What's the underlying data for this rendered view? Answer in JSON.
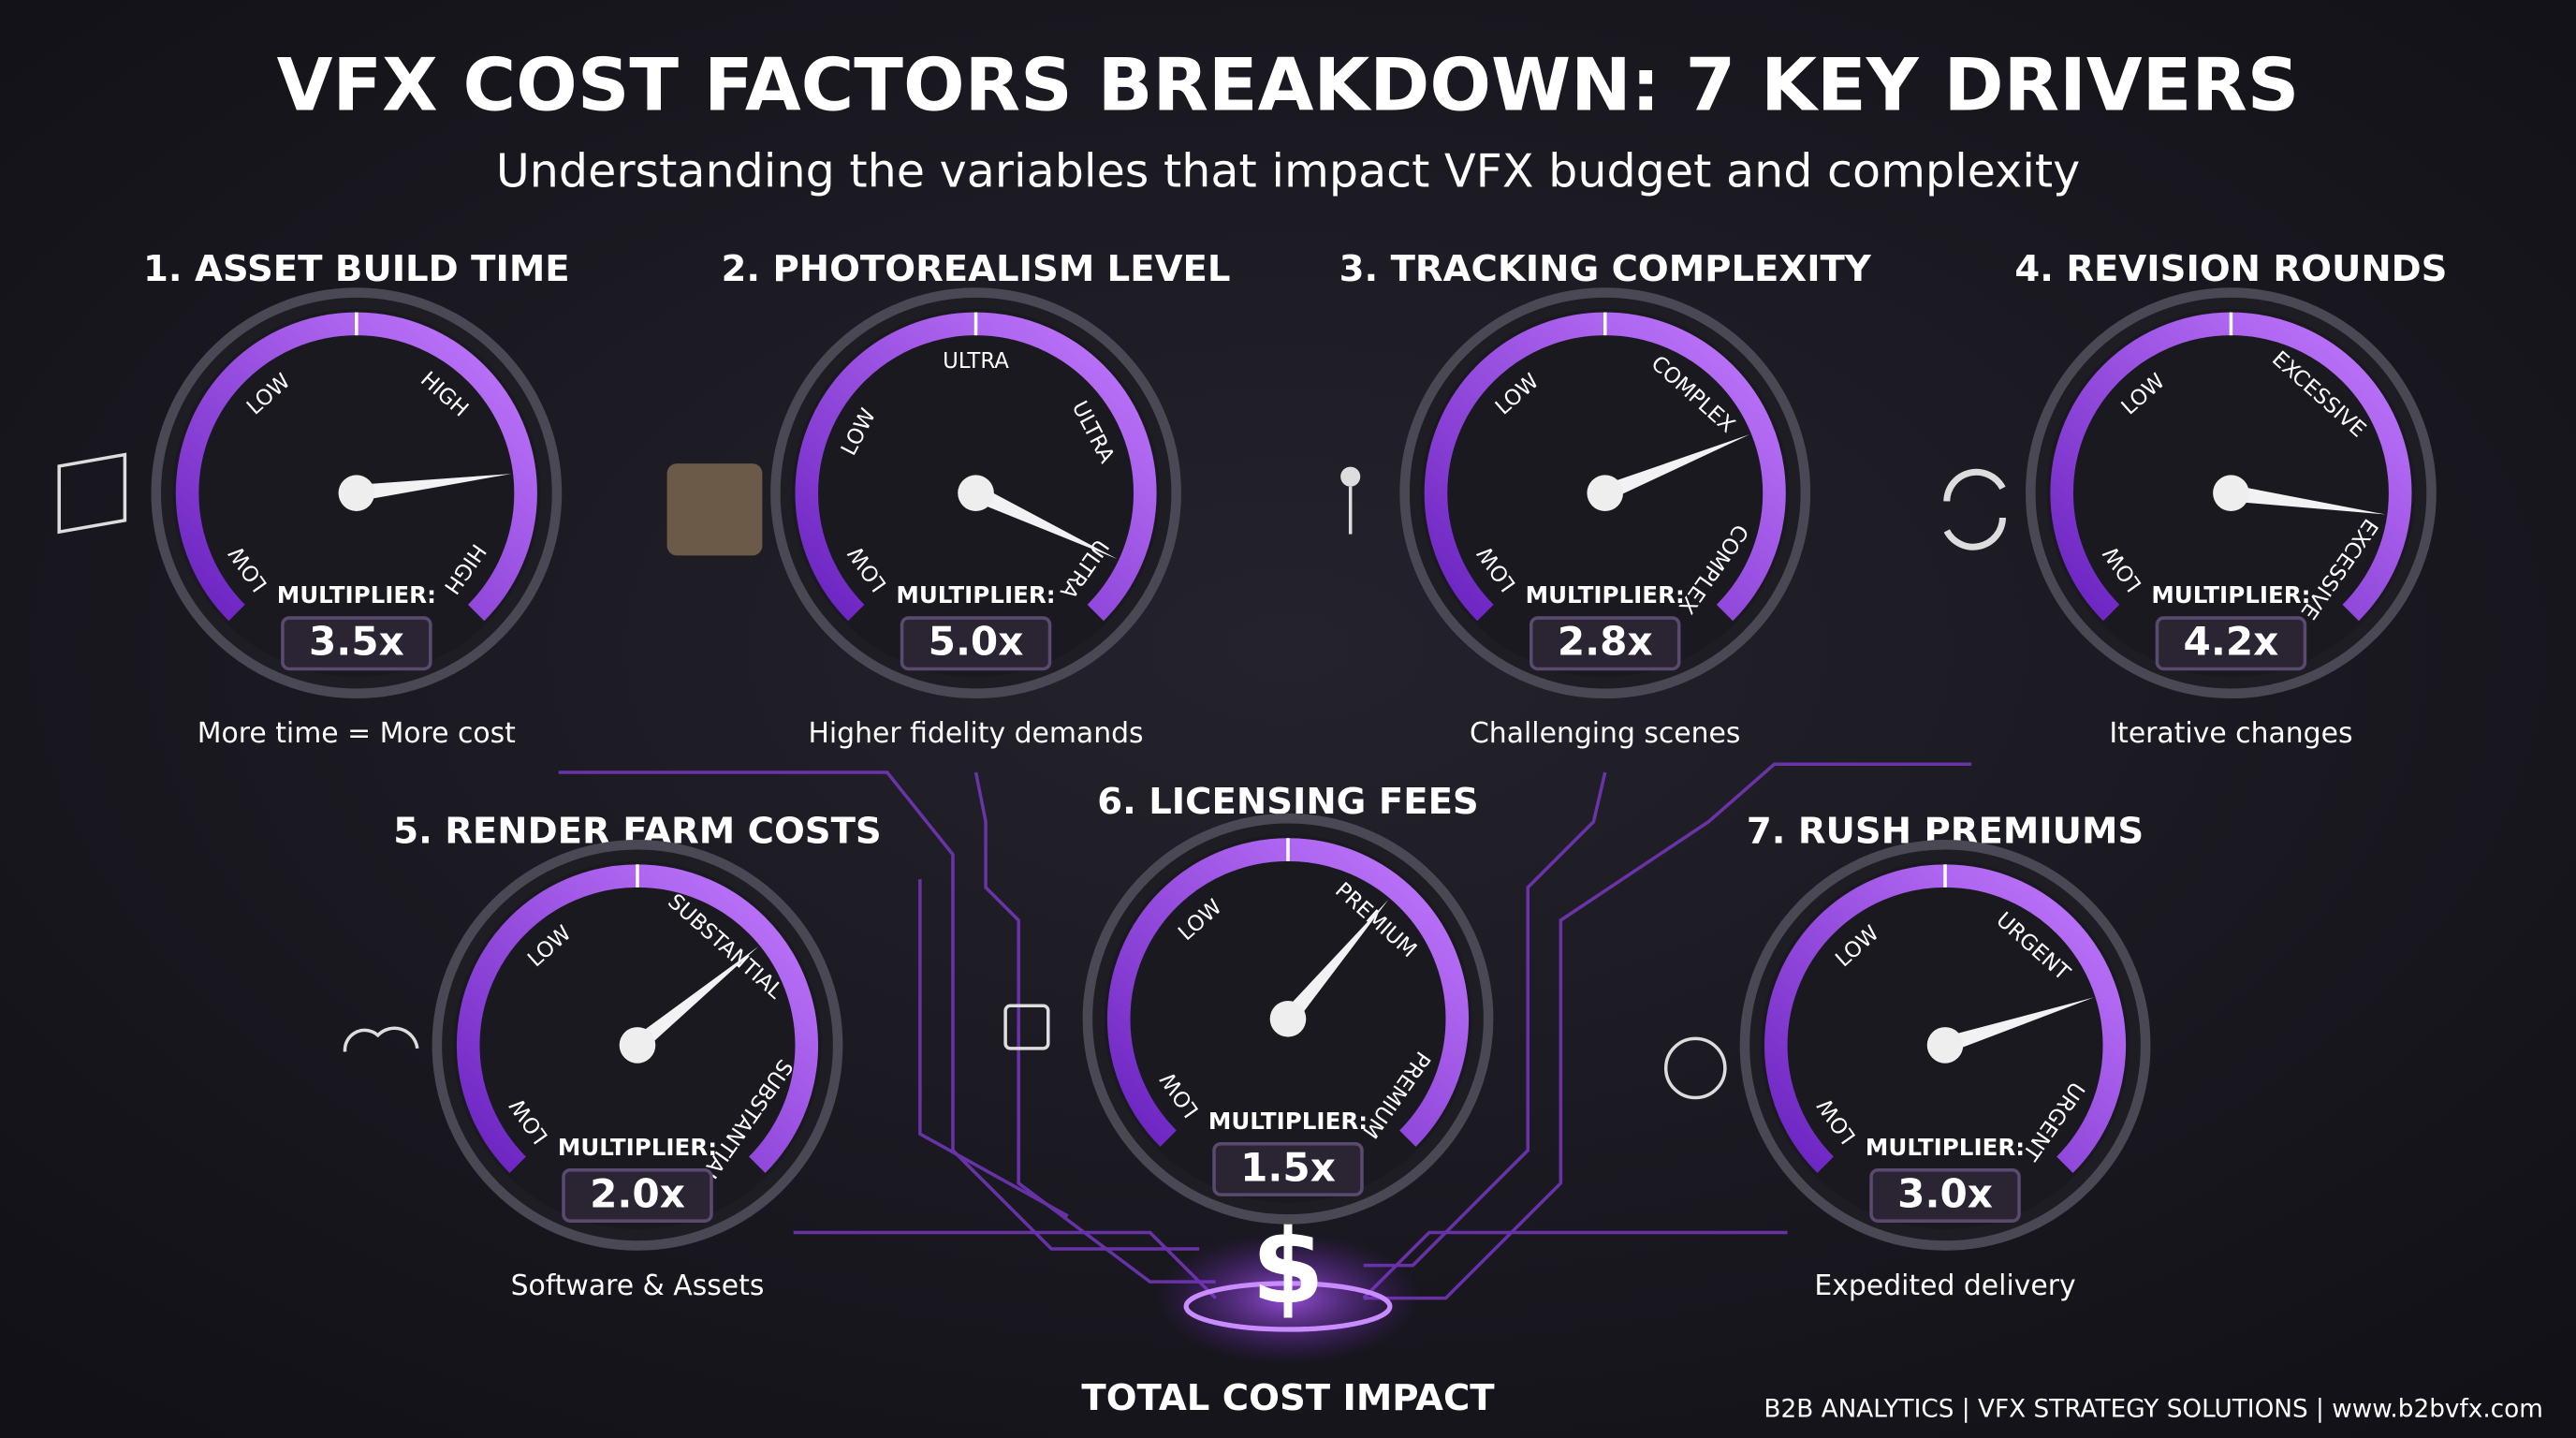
{
  "title": "VFX COST FACTORS BREAKDOWN: 7 KEY DRIVERS",
  "subtitle": "Understanding the variables that impact VFX budget and complexity",
  "multiplier_label": "MULTIPLIER:",
  "gauges": [
    {
      "title": "1. ASSET BUILD TIME",
      "scale_labels": [
        "LOW",
        "LOW",
        "HIGH",
        "HIGH"
      ],
      "value": 3.5,
      "value_label": "3.5x",
      "caption": "More time = More cost"
    },
    {
      "title": "2. PHOTOREALISM LEVEL",
      "scale_labels": [
        "LOW",
        "LOW",
        "ULTRA",
        "ULTRA",
        "ULTRA"
      ],
      "value": 5.0,
      "value_label": "5.0x",
      "caption": "Higher fidelity demands"
    },
    {
      "title": "3. TRACKING COMPLEXITY",
      "scale_labels": [
        "LOW",
        "LOW",
        "COMPLEX",
        "COMPLEX"
      ],
      "value": 2.8,
      "value_label": "2.8x",
      "caption": "Challenging scenes"
    },
    {
      "title": "4. REVISION ROUNDS",
      "scale_labels": [
        "LOW",
        "LOW",
        "EXCESSIVE",
        "EXCESSIVE"
      ],
      "value": 4.2,
      "value_label": "4.2x",
      "caption": "Iterative changes"
    },
    {
      "title": "5. RENDER FARM COSTS",
      "scale_labels": [
        "LOW",
        "LOW",
        "SUBSTANTIAL",
        "SUBSTANTIAL"
      ],
      "value": 2.0,
      "value_label": "2.0x",
      "caption": "Software & Assets"
    },
    {
      "title": "6. LICENSING FEES",
      "scale_labels": [
        "LOW",
        "LOW",
        "PREMIUM",
        "PREMIUM"
      ],
      "value": 1.5,
      "value_label": "1.5x"
    },
    {
      "title": "7. RUSH PREMIUMS",
      "scale_labels": [
        "LOW",
        "LOW",
        "URGENT",
        "URGENT"
      ],
      "value": 3.0,
      "value_label": "3.0x",
      "caption": "Expedited delivery"
    }
  ],
  "center_symbol": "$",
  "center_label": "TOTAL COST IMPACT",
  "footer": "B2B ANALYTICS | VFX STRATEGY SOLUTIONS | www.b2bvfx.com"
}
